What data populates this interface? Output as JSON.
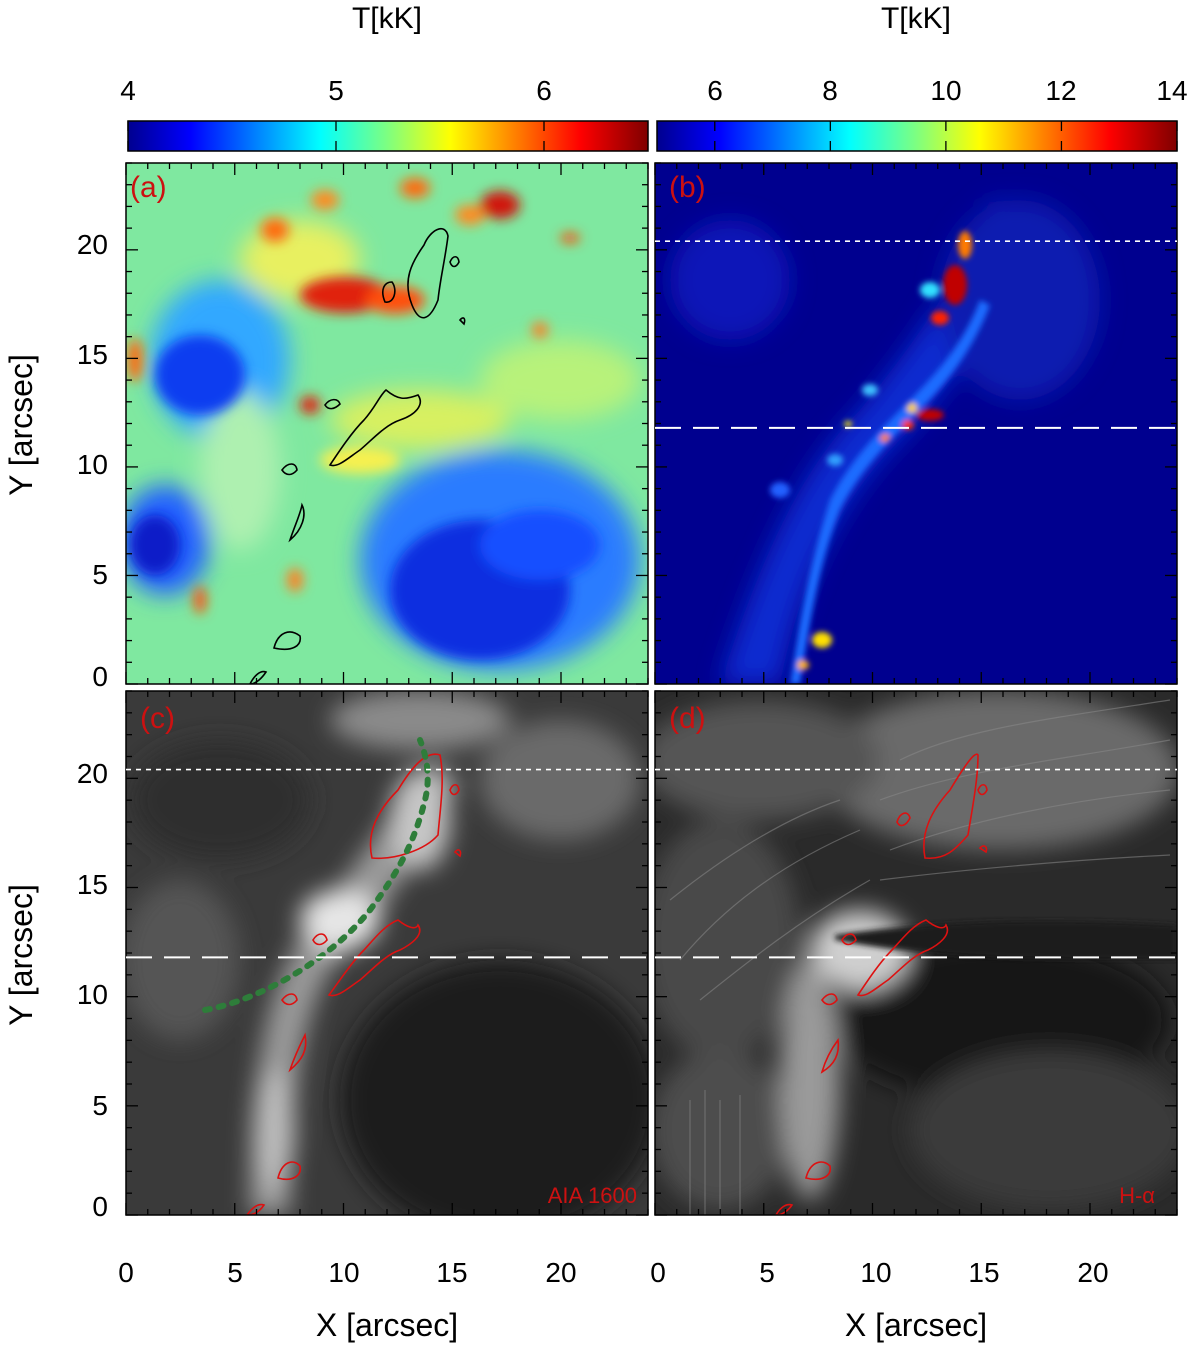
{
  "colorbars": [
    {
      "title": "T[kK]",
      "ticks": [
        "4",
        "5",
        "6"
      ],
      "range": [
        4,
        6.5
      ]
    },
    {
      "title": "T[kK]",
      "ticks": [
        "6",
        "8",
        "10",
        "12",
        "14"
      ],
      "range": [
        5,
        14
      ]
    }
  ],
  "panels": [
    {
      "label": "(a)",
      "type": "temperature-map",
      "colormap": "jet",
      "annotation": ""
    },
    {
      "label": "(b)",
      "type": "temperature-map",
      "colormap": "jet",
      "annotation": ""
    },
    {
      "label": "(c)",
      "type": "intensity-image",
      "colormap": "gray",
      "annotation": "AIA 1600"
    },
    {
      "label": "(d)",
      "type": "intensity-image",
      "colormap": "gray",
      "annotation": "H-α"
    }
  ],
  "axes": {
    "xlabel": "X [arcsec]",
    "ylabel": "Y [arcsec]",
    "xticks": [
      "0",
      "5",
      "10",
      "15",
      "20"
    ],
    "yticks": [
      "0",
      "5",
      "10",
      "15",
      "20"
    ],
    "xrange": [
      0,
      24
    ],
    "yrange": [
      0,
      24
    ]
  },
  "overlays": {
    "short_dash_line_y": 20.4,
    "long_dash_line_y": 11.8,
    "dotted_curve_color": "#2e7d3a",
    "contour_color_a": "#000000",
    "contour_color_cd": "#dd1111"
  },
  "colors": {
    "label_red": "#cc1111"
  }
}
